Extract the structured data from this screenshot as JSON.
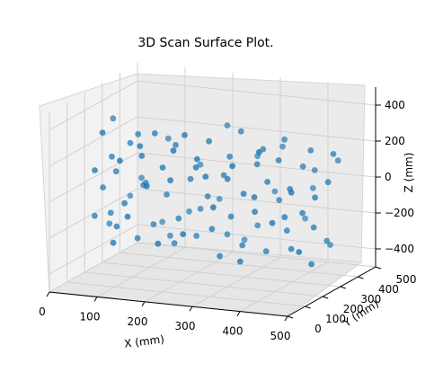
{
  "chart_data": {
    "type": "scatter3d",
    "title": "3D Scan Surface Plot.",
    "xlabel": "X (mm)",
    "ylabel": "Y (mm)",
    "zlabel": "Z (mm)",
    "xlim": [
      0,
      500
    ],
    "ylim": [
      0,
      500
    ],
    "zlim": [
      -500,
      500
    ],
    "xticks": [
      "0",
      "100",
      "200",
      "300",
      "400",
      "500"
    ],
    "yticks": [
      "0",
      "100",
      "200",
      "300",
      "400",
      "500"
    ],
    "zticks": [
      "−400",
      "−200",
      "0",
      "200",
      "400"
    ],
    "grid": true,
    "point_color": "#1f77b4",
    "points": [
      [
        20,
        250,
        -50
      ],
      [
        35,
        260,
        120
      ],
      [
        40,
        240,
        -180
      ],
      [
        55,
        230,
        60
      ],
      [
        60,
        220,
        -240
      ],
      [
        70,
        270,
        200
      ],
      [
        80,
        210,
        -100
      ],
      [
        90,
        260,
        260
      ],
      [
        100,
        230,
        -300
      ],
      [
        110,
        250,
        0
      ],
      [
        120,
        200,
        180
      ],
      [
        130,
        240,
        -220
      ],
      [
        140,
        220,
        300
      ],
      [
        150,
        260,
        -60
      ],
      [
        160,
        210,
        120
      ],
      [
        170,
        250,
        -320
      ],
      [
        180,
        230,
        240
      ],
      [
        190,
        220,
        -160
      ],
      [
        200,
        260,
        40
      ],
      [
        210,
        200,
        320
      ],
      [
        220,
        240,
        -260
      ],
      [
        230,
        210,
        140
      ],
      [
        240,
        250,
        -40
      ],
      [
        250,
        230,
        280
      ],
      [
        260,
        220,
        -200
      ],
      [
        270,
        260,
        80
      ],
      [
        280,
        210,
        -340
      ],
      [
        290,
        240,
        200
      ],
      [
        300,
        220,
        -120
      ],
      [
        310,
        250,
        340
      ],
      [
        320,
        230,
        -280
      ],
      [
        330,
        210,
        20
      ],
      [
        340,
        260,
        160
      ],
      [
        350,
        220,
        -80
      ],
      [
        360,
        240,
        260
      ],
      [
        370,
        230,
        -300
      ],
      [
        380,
        210,
        100
      ],
      [
        390,
        250,
        -20
      ],
      [
        400,
        220,
        220
      ],
      [
        410,
        240,
        -180
      ],
      [
        420,
        230,
        60
      ],
      [
        430,
        210,
        -260
      ],
      [
        440,
        250,
        180
      ],
      [
        450,
        220,
        -60
      ],
      [
        460,
        240,
        280
      ],
      [
        470,
        230,
        -140
      ],
      [
        480,
        210,
        40
      ],
      [
        490,
        250,
        -220
      ],
      [
        500,
        230,
        120
      ],
      [
        15,
        300,
        -280
      ],
      [
        45,
        180,
        300
      ],
      [
        75,
        320,
        -20
      ],
      [
        105,
        160,
        -140
      ],
      [
        135,
        310,
        220
      ],
      [
        165,
        170,
        -280
      ],
      [
        195,
        330,
        80
      ],
      [
        225,
        150,
        -200
      ],
      [
        255,
        320,
        320
      ],
      [
        285,
        160,
        -40
      ],
      [
        315,
        330,
        160
      ],
      [
        345,
        150,
        -320
      ],
      [
        375,
        310,
        240
      ],
      [
        405,
        170,
        -100
      ],
      [
        435,
        320,
        20
      ],
      [
        465,
        160,
        -240
      ],
      [
        495,
        300,
        200
      ],
      [
        25,
        190,
        80
      ],
      [
        55,
        310,
        -120
      ],
      [
        85,
        170,
        160
      ],
      [
        115,
        330,
        -260
      ],
      [
        145,
        160,
        40
      ],
      [
        175,
        320,
        -180
      ],
      [
        205,
        150,
        260
      ],
      [
        235,
        330,
        -100
      ],
      [
        265,
        170,
        120
      ],
      [
        295,
        310,
        -300
      ],
      [
        325,
        160,
        200
      ],
      [
        355,
        320,
        -20
      ],
      [
        385,
        150,
        300
      ],
      [
        415,
        330,
        -160
      ],
      [
        445,
        170,
        80
      ],
      [
        475,
        310,
        -280
      ],
      [
        30,
        280,
        320
      ],
      [
        60,
        200,
        -320
      ],
      [
        90,
        290,
        -40
      ],
      [
        120,
        190,
        240
      ],
      [
        150,
        280,
        -300
      ],
      [
        180,
        200,
        60
      ],
      [
        210,
        290,
        -140
      ],
      [
        240,
        190,
        200
      ],
      [
        270,
        280,
        -260
      ],
      [
        300,
        200,
        100
      ],
      [
        330,
        290,
        -200
      ],
      [
        360,
        190,
        20
      ],
      [
        390,
        280,
        300
      ],
      [
        420,
        200,
        -80
      ],
      [
        450,
        290,
        140
      ],
      [
        480,
        190,
        -320
      ],
      [
        10,
        230,
        -200
      ],
      [
        500,
        260,
        260
      ]
    ]
  }
}
